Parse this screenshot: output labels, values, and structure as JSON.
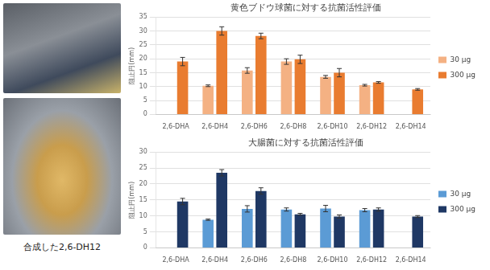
{
  "image_caption": "合成した2,6-DH12",
  "chart_data": [
    {
      "type": "bar",
      "title": "黄色ブドウ球菌に対する抗菌活性評価",
      "y_label": "阻止円(mm)",
      "categories": [
        "2,6-DHA",
        "2,6-DH4",
        "2,6-DH6",
        "2,6-DH8",
        "2,6-DH10",
        "2,6-DH12",
        "2,6-DH14"
      ],
      "series": [
        {
          "name": "30 µg",
          "color": "#f4b183",
          "values": [
            null,
            10.3,
            15.8,
            19,
            13.5,
            10.5,
            null
          ],
          "errors": [
            null,
            0.3,
            1,
            1,
            0.5,
            0.3,
            null
          ]
        },
        {
          "name": "300 µg",
          "color": "#e97c30",
          "values": [
            19,
            30,
            28.2,
            19.8,
            15,
            11.5,
            9
          ],
          "errors": [
            1.5,
            1.5,
            1,
            1.5,
            1.5,
            0.3,
            0.3
          ]
        }
      ],
      "ylim": [
        0,
        35
      ],
      "yticks": [
        0,
        5,
        10,
        15,
        20,
        25,
        30,
        35
      ],
      "grid": true,
      "legend": "right"
    },
    {
      "type": "bar",
      "title": "大腸菌に対する抗菌活性評価",
      "y_label": "阻止円(mm)",
      "categories": [
        "2,6-DHA",
        "2,6-DH4",
        "2,6-DH6",
        "2,6-DH8",
        "2,6-DH10",
        "2,6-DH12",
        "2,6-DH14"
      ],
      "series": [
        {
          "name": "30 µg",
          "color": "#5b9bd5",
          "values": [
            null,
            8.8,
            12.2,
            12,
            12.3,
            11.8,
            null
          ],
          "errors": [
            null,
            0.2,
            1,
            0.5,
            1,
            0.5,
            null
          ]
        },
        {
          "name": "300 µg",
          "color": "#1f3864",
          "values": [
            14.5,
            23.5,
            17.8,
            10.5,
            9.8,
            12,
            9.8
          ],
          "errors": [
            1,
            1,
            1,
            0.3,
            0.5,
            0.5,
            0.3
          ]
        }
      ],
      "ylim": [
        0,
        30
      ],
      "yticks": [
        0,
        5,
        10,
        15,
        20,
        25,
        30
      ],
      "grid": true,
      "legend": "right"
    }
  ]
}
